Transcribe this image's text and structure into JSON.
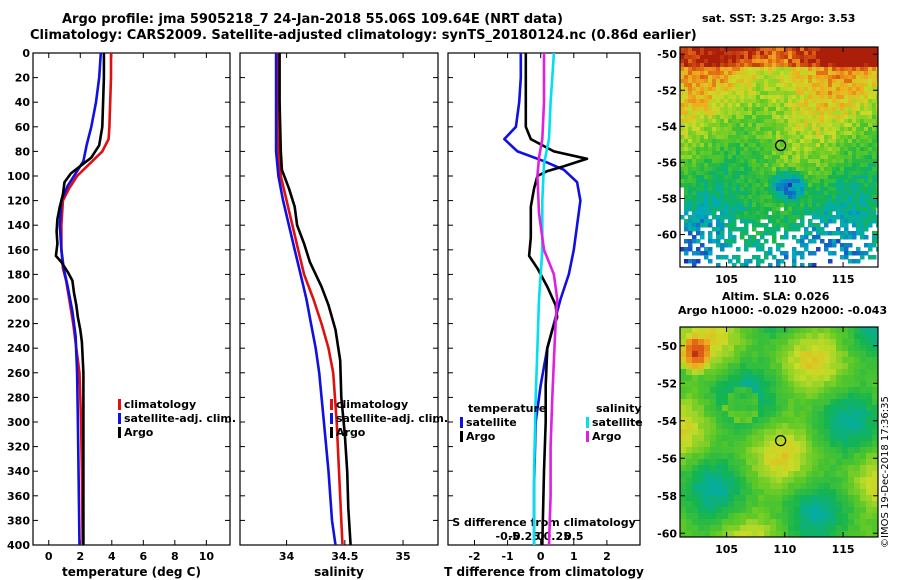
{
  "titles": {
    "line1": "Argo profile: jma 5905218_7 24-Jan-2018 55.06S 109.64E (NRT data)",
    "line2": "Climatology: CARS2009. Satellite-adjusted climatology: synTS_20180124.nc (0.86d earlier)"
  },
  "colors": {
    "climatology": "#e01010",
    "satellite": "#1010e0",
    "argo": "#000000",
    "sat_salinity": "#00e0f0",
    "argo_salinity": "#e020e0"
  },
  "chart_data": [
    {
      "type": "line",
      "id": "temperature",
      "xlabel": "temperature (deg C)",
      "xlim": [
        -1,
        11.5
      ],
      "xticks": [
        0,
        2,
        4,
        6,
        8,
        10
      ],
      "xticklabels": [
        "0",
        "2",
        "4",
        "6",
        "8",
        "10"
      ],
      "ylim": [
        0,
        400
      ],
      "yticks": [
        0,
        20,
        40,
        60,
        80,
        100,
        120,
        140,
        160,
        180,
        200,
        220,
        240,
        260,
        280,
        300,
        320,
        340,
        360,
        380,
        400
      ],
      "yticklabels": [
        "0",
        "20",
        "40",
        "60",
        "80",
        "100",
        "120",
        "140",
        "160",
        "180",
        "200",
        "220",
        "240",
        "260",
        "280",
        "300",
        "320",
        "340",
        "360",
        "380",
        "400"
      ],
      "legend": {
        "position": "lower-right",
        "entries": [
          "climatology",
          "satellite-adj. clim.",
          "Argo"
        ]
      },
      "series": [
        {
          "name": "climatology",
          "color": "#e01010",
          "points": [
            [
              3.95,
              0
            ],
            [
              3.95,
              20
            ],
            [
              3.9,
              40
            ],
            [
              3.85,
              60
            ],
            [
              3.8,
              70
            ],
            [
              3.4,
              80
            ],
            [
              2.6,
              90
            ],
            [
              1.8,
              100
            ],
            [
              1.3,
              110
            ],
            [
              0.9,
              120
            ],
            [
              0.8,
              140
            ],
            [
              0.8,
              160
            ],
            [
              0.9,
              175
            ],
            [
              1.1,
              185
            ],
            [
              1.3,
              200
            ],
            [
              1.55,
              220
            ],
            [
              1.75,
              240
            ],
            [
              1.95,
              260
            ],
            [
              2.0,
              280
            ],
            [
              2.05,
              300
            ],
            [
              2.1,
              340
            ],
            [
              2.15,
              400
            ]
          ]
        },
        {
          "name": "satellite-adj. clim.",
          "color": "#1010e0",
          "points": [
            [
              3.3,
              0
            ],
            [
              3.2,
              20
            ],
            [
              3.0,
              40
            ],
            [
              2.7,
              60
            ],
            [
              2.4,
              75
            ],
            [
              2.2,
              88
            ],
            [
              1.7,
              98
            ],
            [
              1.2,
              108
            ],
            [
              0.8,
              120
            ],
            [
              0.7,
              140
            ],
            [
              0.8,
              160
            ],
            [
              0.95,
              175
            ],
            [
              1.2,
              190
            ],
            [
              1.5,
              210
            ],
            [
              1.7,
              230
            ],
            [
              1.8,
              260
            ],
            [
              1.85,
              300
            ],
            [
              1.9,
              350
            ],
            [
              1.95,
              400
            ]
          ]
        },
        {
          "name": "Argo",
          "color": "#000000",
          "points": [
            [
              3.5,
              0
            ],
            [
              3.5,
              20
            ],
            [
              3.45,
              40
            ],
            [
              3.4,
              60
            ],
            [
              3.2,
              75
            ],
            [
              2.7,
              85
            ],
            [
              2.2,
              90
            ],
            [
              1.4,
              98
            ],
            [
              1.0,
              105
            ],
            [
              0.9,
              115
            ],
            [
              0.7,
              125
            ],
            [
              0.55,
              135
            ],
            [
              0.5,
              145
            ],
            [
              0.55,
              155
            ],
            [
              0.45,
              165
            ],
            [
              0.8,
              170
            ],
            [
              1.2,
              178
            ],
            [
              1.5,
              185
            ],
            [
              1.6,
              195
            ],
            [
              1.75,
              205
            ],
            [
              1.85,
              215
            ],
            [
              2.0,
              225
            ],
            [
              2.1,
              235
            ],
            [
              2.2,
              260
            ],
            [
              2.2,
              300
            ],
            [
              2.2,
              340
            ],
            [
              2.2,
              400
            ]
          ]
        }
      ]
    },
    {
      "type": "line",
      "id": "salinity",
      "xlabel": "salinity",
      "xlim": [
        33.6,
        35.3
      ],
      "xticks": [
        34,
        34.5,
        35
      ],
      "xticklabels": [
        "34",
        "34.5",
        "35"
      ],
      "ylim": [
        0,
        400
      ],
      "yticks": [
        0,
        20,
        40,
        60,
        80,
        100,
        120,
        140,
        160,
        180,
        200,
        220,
        240,
        260,
        280,
        300,
        320,
        340,
        360,
        380,
        400
      ],
      "legend": {
        "position": "lower-right",
        "entries": [
          "climatology",
          "satellite-adj. clim.",
          "Argo"
        ]
      },
      "series": [
        {
          "name": "climatology",
          "color": "#e01010",
          "points": [
            [
              33.93,
              0
            ],
            [
              33.93,
              40
            ],
            [
              33.93,
              80
            ],
            [
              33.95,
              100
            ],
            [
              34.0,
              120
            ],
            [
              34.05,
              140
            ],
            [
              34.1,
              160
            ],
            [
              34.15,
              180
            ],
            [
              34.23,
              200
            ],
            [
              34.3,
              220
            ],
            [
              34.36,
              240
            ],
            [
              34.4,
              260
            ],
            [
              34.43,
              300
            ],
            [
              34.45,
              340
            ],
            [
              34.47,
              380
            ],
            [
              34.48,
              400
            ]
          ]
        },
        {
          "name": "satellite-adj. clim.",
          "color": "#1010e0",
          "points": [
            [
              33.91,
              0
            ],
            [
              33.91,
              40
            ],
            [
              33.91,
              80
            ],
            [
              33.93,
              100
            ],
            [
              33.97,
              120
            ],
            [
              34.02,
              140
            ],
            [
              34.07,
              160
            ],
            [
              34.12,
              180
            ],
            [
              34.17,
              200
            ],
            [
              34.21,
              220
            ],
            [
              34.25,
              240
            ],
            [
              34.28,
              260
            ],
            [
              34.32,
              300
            ],
            [
              34.36,
              340
            ],
            [
              34.39,
              380
            ],
            [
              34.42,
              400
            ]
          ]
        },
        {
          "name": "Argo",
          "color": "#000000",
          "points": [
            [
              33.94,
              0
            ],
            [
              33.94,
              40
            ],
            [
              33.95,
              80
            ],
            [
              33.96,
              95
            ],
            [
              34.02,
              110
            ],
            [
              34.07,
              125
            ],
            [
              34.09,
              140
            ],
            [
              34.15,
              155
            ],
            [
              34.2,
              170
            ],
            [
              34.3,
              190
            ],
            [
              34.36,
              205
            ],
            [
              34.42,
              225
            ],
            [
              34.46,
              250
            ],
            [
              34.47,
              280
            ],
            [
              34.5,
              310
            ],
            [
              34.52,
              340
            ],
            [
              34.53,
              370
            ],
            [
              34.55,
              400
            ]
          ]
        }
      ]
    },
    {
      "type": "line",
      "id": "differences",
      "xlabel": "T difference from climatology",
      "top_xlabel": "S difference from climatology",
      "xlim": [
        -2.8,
        3.0
      ],
      "xticks": [
        -2,
        -1,
        0,
        1,
        2
      ],
      "xticklabels": [
        "-2",
        "-1",
        "0",
        "1",
        "2"
      ],
      "top_xticks": [
        -1,
        -0.5,
        0,
        0.5,
        1
      ],
      "top_xticklabels": [
        "-0.5",
        "-0.25",
        "0",
        "0.25",
        "0.5"
      ],
      "ylim": [
        0,
        400
      ],
      "yticks": [
        0,
        20,
        40,
        60,
        80,
        100,
        120,
        140,
        160,
        180,
        200,
        220,
        240,
        260,
        280,
        300,
        320,
        340,
        360,
        380,
        400
      ],
      "legend": {
        "groups": [
          {
            "title": "temperature",
            "entries": [
              "satellite",
              "Argo"
            ]
          },
          {
            "title": "salinity",
            "entries": [
              "satellite",
              "Argo"
            ]
          }
        ]
      },
      "series": [
        {
          "name": "T satellite",
          "color": "#1010e0",
          "points": [
            [
              -0.6,
              0
            ],
            [
              -0.6,
              20
            ],
            [
              -0.65,
              40
            ],
            [
              -0.75,
              60
            ],
            [
              -1.1,
              70
            ],
            [
              -0.7,
              80
            ],
            [
              0.1,
              88
            ],
            [
              0.7,
              95
            ],
            [
              1.1,
              105
            ],
            [
              1.2,
              120
            ],
            [
              1.1,
              140
            ],
            [
              1.0,
              160
            ],
            [
              0.85,
              180
            ],
            [
              0.6,
              200
            ],
            [
              0.4,
              220
            ],
            [
              0.2,
              240
            ],
            [
              0.0,
              270
            ],
            [
              -0.15,
              300
            ],
            [
              -0.2,
              350
            ],
            [
              -0.2,
              400
            ]
          ]
        },
        {
          "name": "T Argo",
          "color": "#000000",
          "points": [
            [
              -0.45,
              0
            ],
            [
              -0.45,
              30
            ],
            [
              -0.45,
              60
            ],
            [
              -0.3,
              70
            ],
            [
              0.4,
              80
            ],
            [
              1.4,
              86
            ],
            [
              0.7,
              92
            ],
            [
              0.2,
              96
            ],
            [
              -0.1,
              100
            ],
            [
              -0.2,
              110
            ],
            [
              -0.3,
              125
            ],
            [
              -0.3,
              150
            ],
            [
              -0.35,
              165
            ],
            [
              -0.1,
              175
            ],
            [
              0.2,
              190
            ],
            [
              0.45,
              205
            ],
            [
              0.5,
              215
            ],
            [
              0.35,
              225
            ],
            [
              0.2,
              240
            ],
            [
              0.15,
              270
            ],
            [
              0.15,
              300
            ],
            [
              0.1,
              340
            ],
            [
              0.05,
              400
            ]
          ]
        },
        {
          "name": "S satellite",
          "color": "#00e0f0",
          "points": [
            [
              0.4,
              0
            ],
            [
              0.35,
              20
            ],
            [
              0.3,
              40
            ],
            [
              0.25,
              70
            ],
            [
              0.1,
              90
            ],
            [
              0.05,
              120
            ],
            [
              0.05,
              160
            ],
            [
              0.0,
              180
            ],
            [
              -0.05,
              200
            ],
            [
              -0.1,
              240
            ],
            [
              -0.15,
              280
            ],
            [
              -0.2,
              340
            ],
            [
              -0.2,
              400
            ]
          ]
        },
        {
          "name": "S Argo",
          "color": "#e020e0",
          "points": [
            [
              0.1,
              0
            ],
            [
              0.1,
              40
            ],
            [
              0.05,
              70
            ],
            [
              -0.05,
              85
            ],
            [
              -0.1,
              100
            ],
            [
              -0.05,
              130
            ],
            [
              0.1,
              160
            ],
            [
              0.4,
              180
            ],
            [
              0.5,
              200
            ],
            [
              0.45,
              220
            ],
            [
              0.4,
              250
            ],
            [
              0.35,
              280
            ],
            [
              0.3,
              320
            ],
            [
              0.3,
              360
            ],
            [
              0.25,
              400
            ]
          ]
        }
      ]
    },
    {
      "type": "heatmap",
      "id": "sst-map",
      "title": "sat. SST: 3.25 Argo: 3.53",
      "xticks": [
        105,
        110,
        115
      ],
      "xticklabels": [
        "105",
        "110",
        "115"
      ],
      "yticks": [
        -50,
        -52,
        -54,
        -56,
        -58,
        -60
      ],
      "yticklabels": [
        "-50",
        "-52",
        "-54",
        "-56",
        "-58",
        "-60"
      ],
      "xlim": [
        101,
        118
      ],
      "ylim": [
        -61.8,
        -49.6
      ],
      "marker": {
        "lon": 109.64,
        "lat": -55.06
      }
    },
    {
      "type": "heatmap",
      "id": "sla-map",
      "title": "Altim. SLA: 0.026",
      "subtitle": "Argo h1000: -0.029 h2000: -0.043",
      "xticks": [
        105,
        110,
        115
      ],
      "xticklabels": [
        "105",
        "110",
        "115"
      ],
      "yticks": [
        -50,
        -52,
        -54,
        -56,
        -58,
        -60
      ],
      "yticklabels": [
        "-50",
        "-52",
        "-54",
        "-56",
        "-58",
        "-60"
      ],
      "xlim": [
        101,
        118
      ],
      "ylim": [
        -60.2,
        -49.0
      ],
      "marker": {
        "lon": 109.64,
        "lat": -55.06
      }
    }
  ],
  "credit": "©IMOS 19-Dec-2018 17:36:35"
}
